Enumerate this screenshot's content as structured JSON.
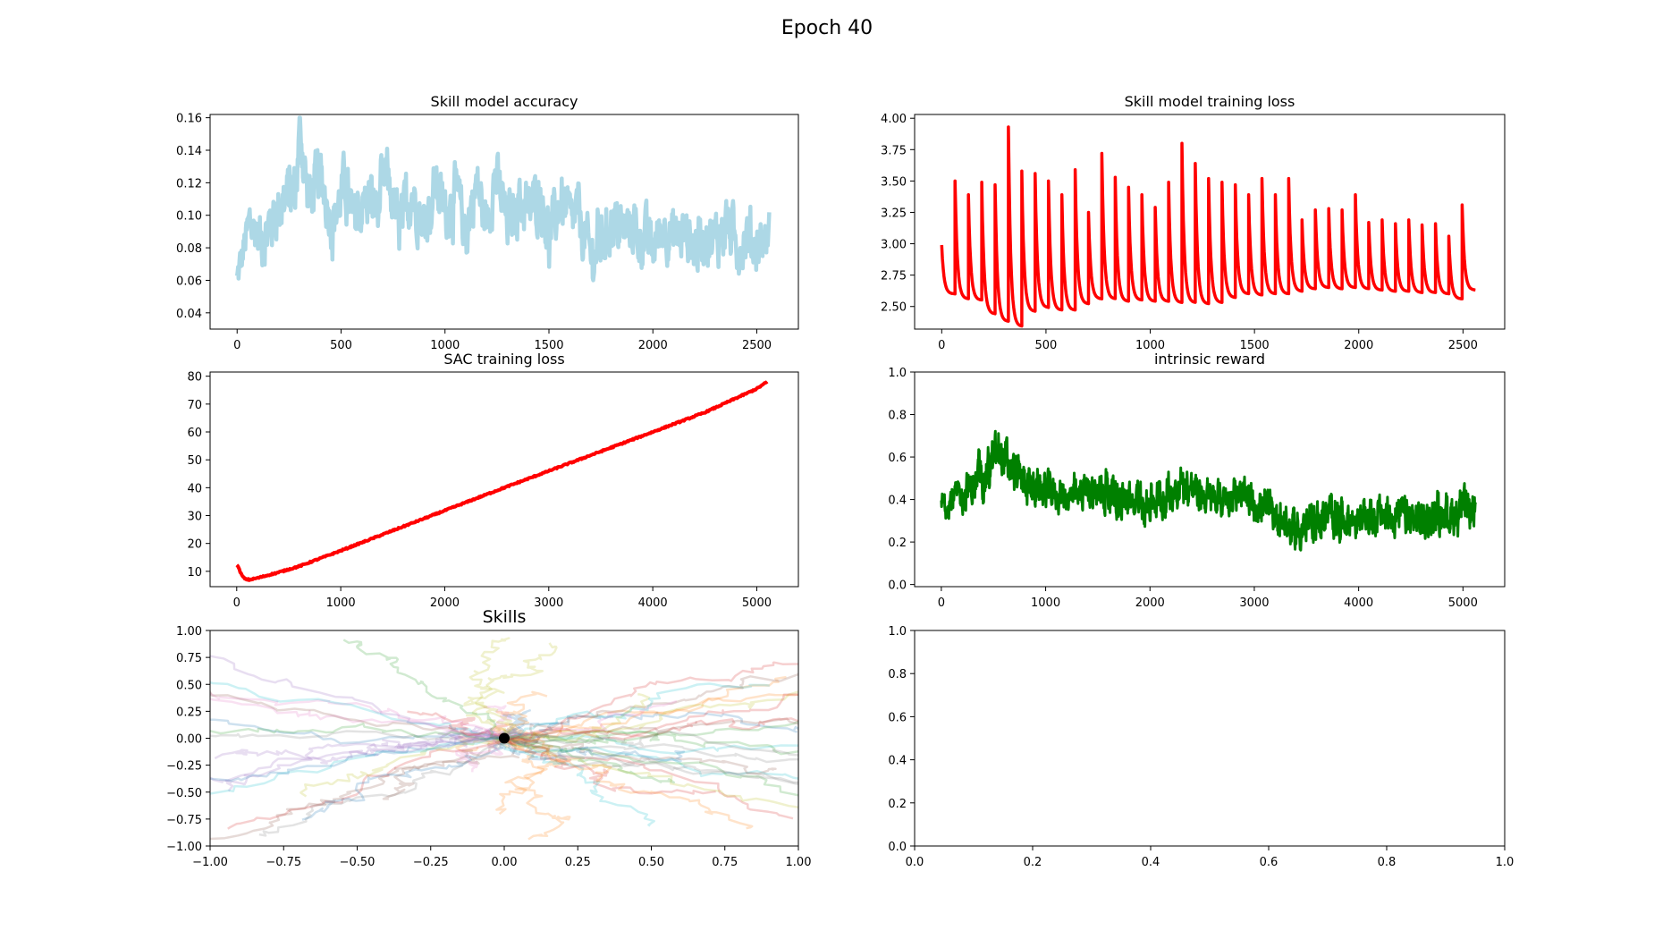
{
  "figure": {
    "suptitle": "Epoch 40"
  },
  "chart_data": [
    {
      "id": "acc",
      "type": "line",
      "title": "Skill model accuracy",
      "xlabel": "",
      "ylabel": "",
      "xlim": [
        -130,
        2700
      ],
      "ylim": [
        0.03,
        0.162
      ],
      "xticks": [
        0,
        500,
        1000,
        1500,
        2000,
        2500
      ],
      "yticks": [
        0.04,
        0.06,
        0.08,
        0.1,
        0.12,
        0.14,
        0.16
      ],
      "ytick_labels": [
        "0.04",
        "0.06",
        "0.08",
        "0.10",
        "0.12",
        "0.14",
        "0.16"
      ],
      "color": "#add8e6",
      "stroke_width": 4.5,
      "series": [
        {
          "x": [
            0,
            60,
            120,
            200,
            280,
            305,
            340,
            400,
            460,
            520,
            560,
            620,
            680,
            720,
            780,
            840,
            900,
            960,
            1000,
            1050,
            1100,
            1150,
            1200,
            1240,
            1300,
            1360,
            1400,
            1460,
            1500,
            1560,
            1600,
            1640,
            1700,
            1760,
            1800,
            1860,
            1900,
            1960,
            2000,
            2060,
            2100,
            2160,
            2200,
            2260,
            2300,
            2360,
            2400,
            2460,
            2500,
            2560
          ],
          "y": [
            0.06,
            0.095,
            0.085,
            0.105,
            0.115,
            0.155,
            0.11,
            0.125,
            0.095,
            0.12,
            0.095,
            0.11,
            0.105,
            0.125,
            0.09,
            0.115,
            0.095,
            0.12,
            0.1,
            0.115,
            0.09,
            0.12,
            0.095,
            0.125,
            0.095,
            0.11,
            0.1,
            0.115,
            0.085,
            0.11,
            0.095,
            0.1,
            0.075,
            0.085,
            0.095,
            0.09,
            0.095,
            0.085,
            0.08,
            0.095,
            0.085,
            0.09,
            0.08,
            0.09,
            0.085,
            0.095,
            0.08,
            0.09,
            0.08,
            0.09
          ],
          "spread": [
            0.02,
            0.025,
            0.03,
            0.03,
            0.035,
            0.035,
            0.03,
            0.03,
            0.03,
            0.03,
            0.03,
            0.03,
            0.03,
            0.03,
            0.03,
            0.03,
            0.03,
            0.03,
            0.03,
            0.03,
            0.03,
            0.03,
            0.03,
            0.03,
            0.03,
            0.03,
            0.03,
            0.03,
            0.03,
            0.03,
            0.03,
            0.03,
            0.03,
            0.03,
            0.03,
            0.03,
            0.03,
            0.03,
            0.03,
            0.03,
            0.03,
            0.03,
            0.03,
            0.03,
            0.03,
            0.03,
            0.03,
            0.03,
            0.03,
            0.025
          ]
        }
      ]
    },
    {
      "id": "loss",
      "type": "line",
      "title": "Skill model training loss",
      "xlabel": "",
      "ylabel": "",
      "xlim": [
        -130,
        2700
      ],
      "ylim": [
        2.32,
        4.03
      ],
      "xticks": [
        0,
        500,
        1000,
        1500,
        2000,
        2500
      ],
      "yticks": [
        2.5,
        2.75,
        3.0,
        3.25,
        3.5,
        3.75,
        4.0
      ],
      "ytick_labels": [
        "2.50",
        "2.75",
        "3.00",
        "3.25",
        "3.50",
        "3.75",
        "4.00"
      ],
      "color": "#ff0000",
      "stroke_width": 3.5,
      "spikes": [
        {
          "x": 0,
          "peak": 2.99,
          "floor": 2.6
        },
        {
          "x": 64,
          "peak": 3.5,
          "floor": 2.56
        },
        {
          "x": 128,
          "peak": 3.39,
          "floor": 2.55
        },
        {
          "x": 192,
          "peak": 3.49,
          "floor": 2.44
        },
        {
          "x": 256,
          "peak": 3.47,
          "floor": 2.38
        },
        {
          "x": 320,
          "peak": 3.93,
          "floor": 2.34
        },
        {
          "x": 384,
          "peak": 3.58,
          "floor": 2.46
        },
        {
          "x": 448,
          "peak": 3.56,
          "floor": 2.49
        },
        {
          "x": 512,
          "peak": 3.5,
          "floor": 2.47
        },
        {
          "x": 576,
          "peak": 3.39,
          "floor": 2.47
        },
        {
          "x": 640,
          "peak": 3.59,
          "floor": 2.52
        },
        {
          "x": 704,
          "peak": 3.25,
          "floor": 2.56
        },
        {
          "x": 768,
          "peak": 3.72,
          "floor": 2.56
        },
        {
          "x": 832,
          "peak": 3.53,
          "floor": 2.54
        },
        {
          "x": 896,
          "peak": 3.45,
          "floor": 2.55
        },
        {
          "x": 960,
          "peak": 3.39,
          "floor": 2.54
        },
        {
          "x": 1024,
          "peak": 3.29,
          "floor": 2.54
        },
        {
          "x": 1088,
          "peak": 3.49,
          "floor": 2.53
        },
        {
          "x": 1152,
          "peak": 3.8,
          "floor": 2.53
        },
        {
          "x": 1216,
          "peak": 3.64,
          "floor": 2.52
        },
        {
          "x": 1280,
          "peak": 3.52,
          "floor": 2.53
        },
        {
          "x": 1344,
          "peak": 3.49,
          "floor": 2.57
        },
        {
          "x": 1408,
          "peak": 3.47,
          "floor": 2.6
        },
        {
          "x": 1472,
          "peak": 3.39,
          "floor": 2.59
        },
        {
          "x": 1536,
          "peak": 3.52,
          "floor": 2.6
        },
        {
          "x": 1600,
          "peak": 3.39,
          "floor": 2.6
        },
        {
          "x": 1664,
          "peak": 3.52,
          "floor": 2.62
        },
        {
          "x": 1728,
          "peak": 3.19,
          "floor": 2.64
        },
        {
          "x": 1792,
          "peak": 3.27,
          "floor": 2.65
        },
        {
          "x": 1856,
          "peak": 3.28,
          "floor": 2.64
        },
        {
          "x": 1920,
          "peak": 3.27,
          "floor": 2.65
        },
        {
          "x": 1984,
          "peak": 3.39,
          "floor": 2.64
        },
        {
          "x": 2048,
          "peak": 3.17,
          "floor": 2.63
        },
        {
          "x": 2112,
          "peak": 3.19,
          "floor": 2.62
        },
        {
          "x": 2176,
          "peak": 3.16,
          "floor": 2.62
        },
        {
          "x": 2240,
          "peak": 3.19,
          "floor": 2.61
        },
        {
          "x": 2304,
          "peak": 3.15,
          "floor": 2.61
        },
        {
          "x": 2368,
          "peak": 3.16,
          "floor": 2.6
        },
        {
          "x": 2432,
          "peak": 3.06,
          "floor": 2.56
        },
        {
          "x": 2496,
          "peak": 3.31,
          "floor": 2.62
        }
      ],
      "end": {
        "x": 2560,
        "y": 2.63
      }
    },
    {
      "id": "sac",
      "type": "line",
      "title": "SAC training loss",
      "xlabel": "",
      "ylabel": "",
      "xlim": [
        -256,
        5400
      ],
      "ylim": [
        4.5,
        81.5
      ],
      "xticks": [
        0,
        1000,
        2000,
        3000,
        4000,
        5000
      ],
      "yticks": [
        10,
        20,
        30,
        40,
        50,
        60,
        70,
        80
      ],
      "ytick_labels": [
        "10",
        "20",
        "30",
        "40",
        "50",
        "60",
        "70",
        "80"
      ],
      "color": "#ff0000",
      "stroke_width": 4,
      "series": [
        {
          "x": [
            0,
            20,
            50,
            80,
            120,
            200,
            400,
            600,
            800,
            1000,
            1500,
            2000,
            2500,
            3000,
            3500,
            4000,
            4500,
            5000,
            5100
          ],
          "y": [
            12.5,
            11,
            8.5,
            7.2,
            7.0,
            7.6,
            9.6,
            11.8,
            14.6,
            17.4,
            24.6,
            31.8,
            39.0,
            46.0,
            53.0,
            60.0,
            67.0,
            75.5,
            78.0
          ]
        }
      ]
    },
    {
      "id": "reward",
      "type": "line",
      "title": "intrinsic reward",
      "xlabel": "",
      "ylabel": "",
      "xlim": [
        -256,
        5400
      ],
      "ylim": [
        -0.01,
        1.0
      ],
      "xticks": [
        0,
        1000,
        2000,
        3000,
        4000,
        5000
      ],
      "yticks": [
        0.0,
        0.2,
        0.4,
        0.6,
        0.8,
        1.0
      ],
      "ytick_labels": [
        "0.0",
        "0.2",
        "0.4",
        "0.6",
        "0.8",
        "1.0"
      ],
      "color": "#008000",
      "stroke_width": 3,
      "series": [
        {
          "x": [
            0,
            200,
            400,
            560,
            700,
            900,
            1100,
            1300,
            1400,
            1500,
            1580,
            1700,
            1900,
            2100,
            2300,
            2450,
            2600,
            2800,
            3000,
            3200,
            3400,
            3600,
            3800,
            4000,
            4200,
            4400,
            4600,
            4800,
            5000,
            5120
          ],
          "y": [
            0.38,
            0.42,
            0.5,
            0.62,
            0.52,
            0.45,
            0.43,
            0.4,
            0.45,
            0.42,
            0.46,
            0.4,
            0.38,
            0.4,
            0.48,
            0.43,
            0.4,
            0.42,
            0.38,
            0.33,
            0.25,
            0.3,
            0.32,
            0.3,
            0.32,
            0.33,
            0.3,
            0.33,
            0.34,
            0.36
          ],
          "spread": [
            0.1,
            0.14,
            0.17,
            0.2,
            0.16,
            0.16,
            0.14,
            0.14,
            0.14,
            0.16,
            0.2,
            0.14,
            0.14,
            0.16,
            0.16,
            0.14,
            0.14,
            0.14,
            0.14,
            0.14,
            0.15,
            0.15,
            0.15,
            0.15,
            0.15,
            0.15,
            0.15,
            0.16,
            0.17,
            0.14
          ]
        }
      ]
    },
    {
      "id": "skills",
      "type": "line",
      "title": "Skills",
      "xlabel": "",
      "ylabel": "",
      "xlim": [
        -1.0,
        1.0
      ],
      "ylim": [
        -1.0,
        1.0
      ],
      "xticks": [
        -1.0,
        -0.75,
        -0.5,
        -0.25,
        0.0,
        0.25,
        0.5,
        0.75,
        1.0
      ],
      "xtick_labels": [
        "−1.00",
        "−0.75",
        "−0.50",
        "−0.25",
        "0.00",
        "0.25",
        "0.50",
        "0.75",
        "1.00"
      ],
      "yticks": [
        -1.0,
        -0.75,
        -0.5,
        -0.25,
        0.0,
        0.25,
        0.5,
        0.75,
        1.0
      ],
      "ytick_labels": [
        "−1.00",
        "−0.75",
        "−0.50",
        "−0.25",
        "0.00",
        "0.25",
        "0.50",
        "0.75",
        "1.00"
      ],
      "palette": [
        "#1f77b4",
        "#ff7f0e",
        "#2ca02c",
        "#d62728",
        "#9467bd",
        "#8c564b",
        "#e377c2",
        "#7f7f7f",
        "#bcbd22",
        "#17becf"
      ],
      "trajectory_opacity": 0.22,
      "trajectory_count": 64,
      "origin": {
        "x": 0.0,
        "y": 0.0,
        "color": "#000000"
      }
    },
    {
      "id": "empty",
      "type": "line",
      "title": "",
      "xlabel": "",
      "ylabel": "",
      "xlim": [
        0.0,
        1.0
      ],
      "ylim": [
        0.0,
        1.0
      ],
      "xticks": [
        0.0,
        0.2,
        0.4,
        0.6,
        0.8,
        1.0
      ],
      "xtick_labels": [
        "0.0",
        "0.2",
        "0.4",
        "0.6",
        "0.8",
        "1.0"
      ],
      "yticks": [
        0.0,
        0.2,
        0.4,
        0.6,
        0.8,
        1.0
      ],
      "ytick_labels": [
        "0.0",
        "0.2",
        "0.4",
        "0.6",
        "0.8",
        "1.0"
      ],
      "series": []
    }
  ]
}
